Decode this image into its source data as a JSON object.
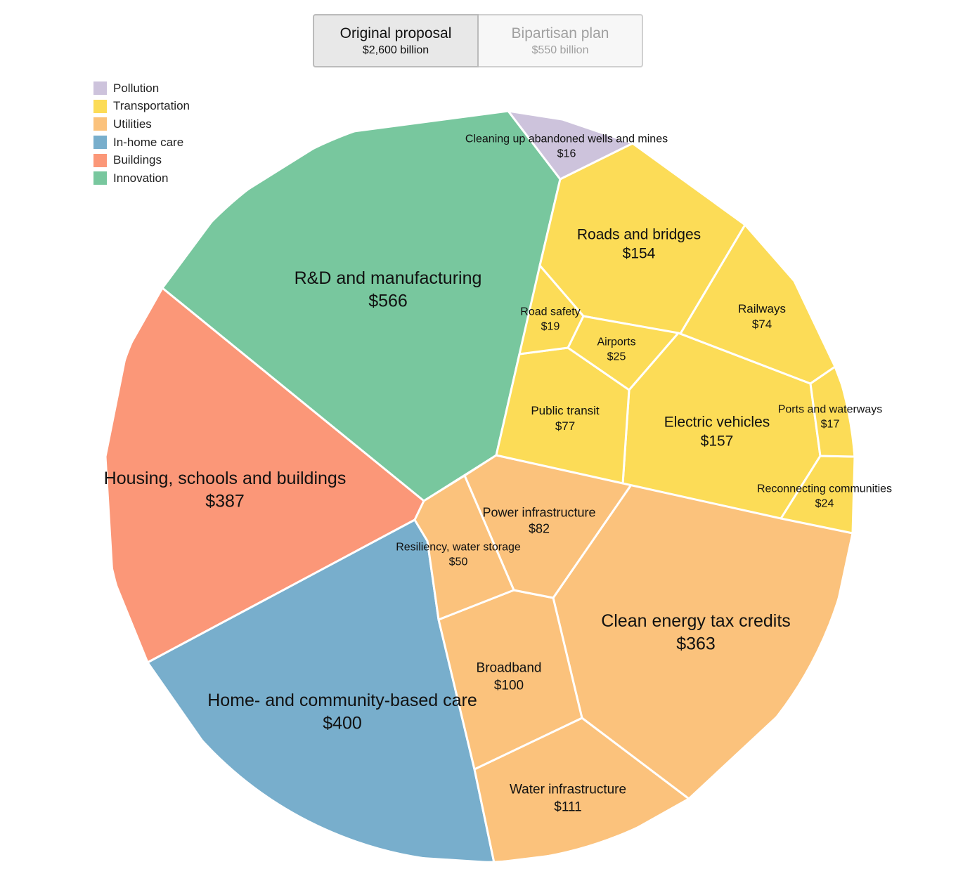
{
  "toggle": [
    {
      "title": "Original proposal",
      "sub": "$2,600 billion",
      "active": true
    },
    {
      "title": "Bipartisan plan",
      "sub": "$550 billion",
      "active": false
    }
  ],
  "legend": [
    {
      "label": "Pollution",
      "color": "#cdc3dc"
    },
    {
      "label": "Transportation",
      "color": "#fcdc57"
    },
    {
      "label": "Utilities",
      "color": "#fbc27c"
    },
    {
      "label": "In-home care",
      "color": "#78aecc"
    },
    {
      "label": "Buildings",
      "color": "#fb9778"
    },
    {
      "label": "Innovation",
      "color": "#78c79e"
    }
  ],
  "chart_data": {
    "type": "voronoi_treemap",
    "unit": "$ billion",
    "total_label": "$2,600 billion",
    "items": [
      {
        "name": "R&D and manufacturing",
        "value": 566,
        "category": "Innovation"
      },
      {
        "name": "Housing, schools and buildings",
        "value": 387,
        "category": "Buildings"
      },
      {
        "name": "Home- and community-based care",
        "value": 400,
        "category": "In-home care"
      },
      {
        "name": "Clean energy tax credits",
        "value": 363,
        "category": "Utilities"
      },
      {
        "name": "Water infrastructure",
        "value": 111,
        "category": "Utilities"
      },
      {
        "name": "Broadband",
        "value": 100,
        "category": "Utilities"
      },
      {
        "name": "Power infrastructure",
        "value": 82,
        "category": "Utilities"
      },
      {
        "name": "Resiliency, water storage",
        "value": 50,
        "category": "Utilities"
      },
      {
        "name": "Roads and bridges",
        "value": 154,
        "category": "Transportation"
      },
      {
        "name": "Electric vehicles",
        "value": 157,
        "category": "Transportation"
      },
      {
        "name": "Public transit",
        "value": 77,
        "category": "Transportation"
      },
      {
        "name": "Railways",
        "value": 74,
        "category": "Transportation"
      },
      {
        "name": "Airports",
        "value": 25,
        "category": "Transportation"
      },
      {
        "name": "Reconnecting communities",
        "value": 24,
        "category": "Transportation"
      },
      {
        "name": "Road safety",
        "value": 19,
        "category": "Transportation"
      },
      {
        "name": "Ports and waterways",
        "value": 17,
        "category": "Transportation"
      },
      {
        "name": "Cleaning up abandoned wells and mines",
        "value": 16,
        "category": "Pollution"
      }
    ]
  }
}
